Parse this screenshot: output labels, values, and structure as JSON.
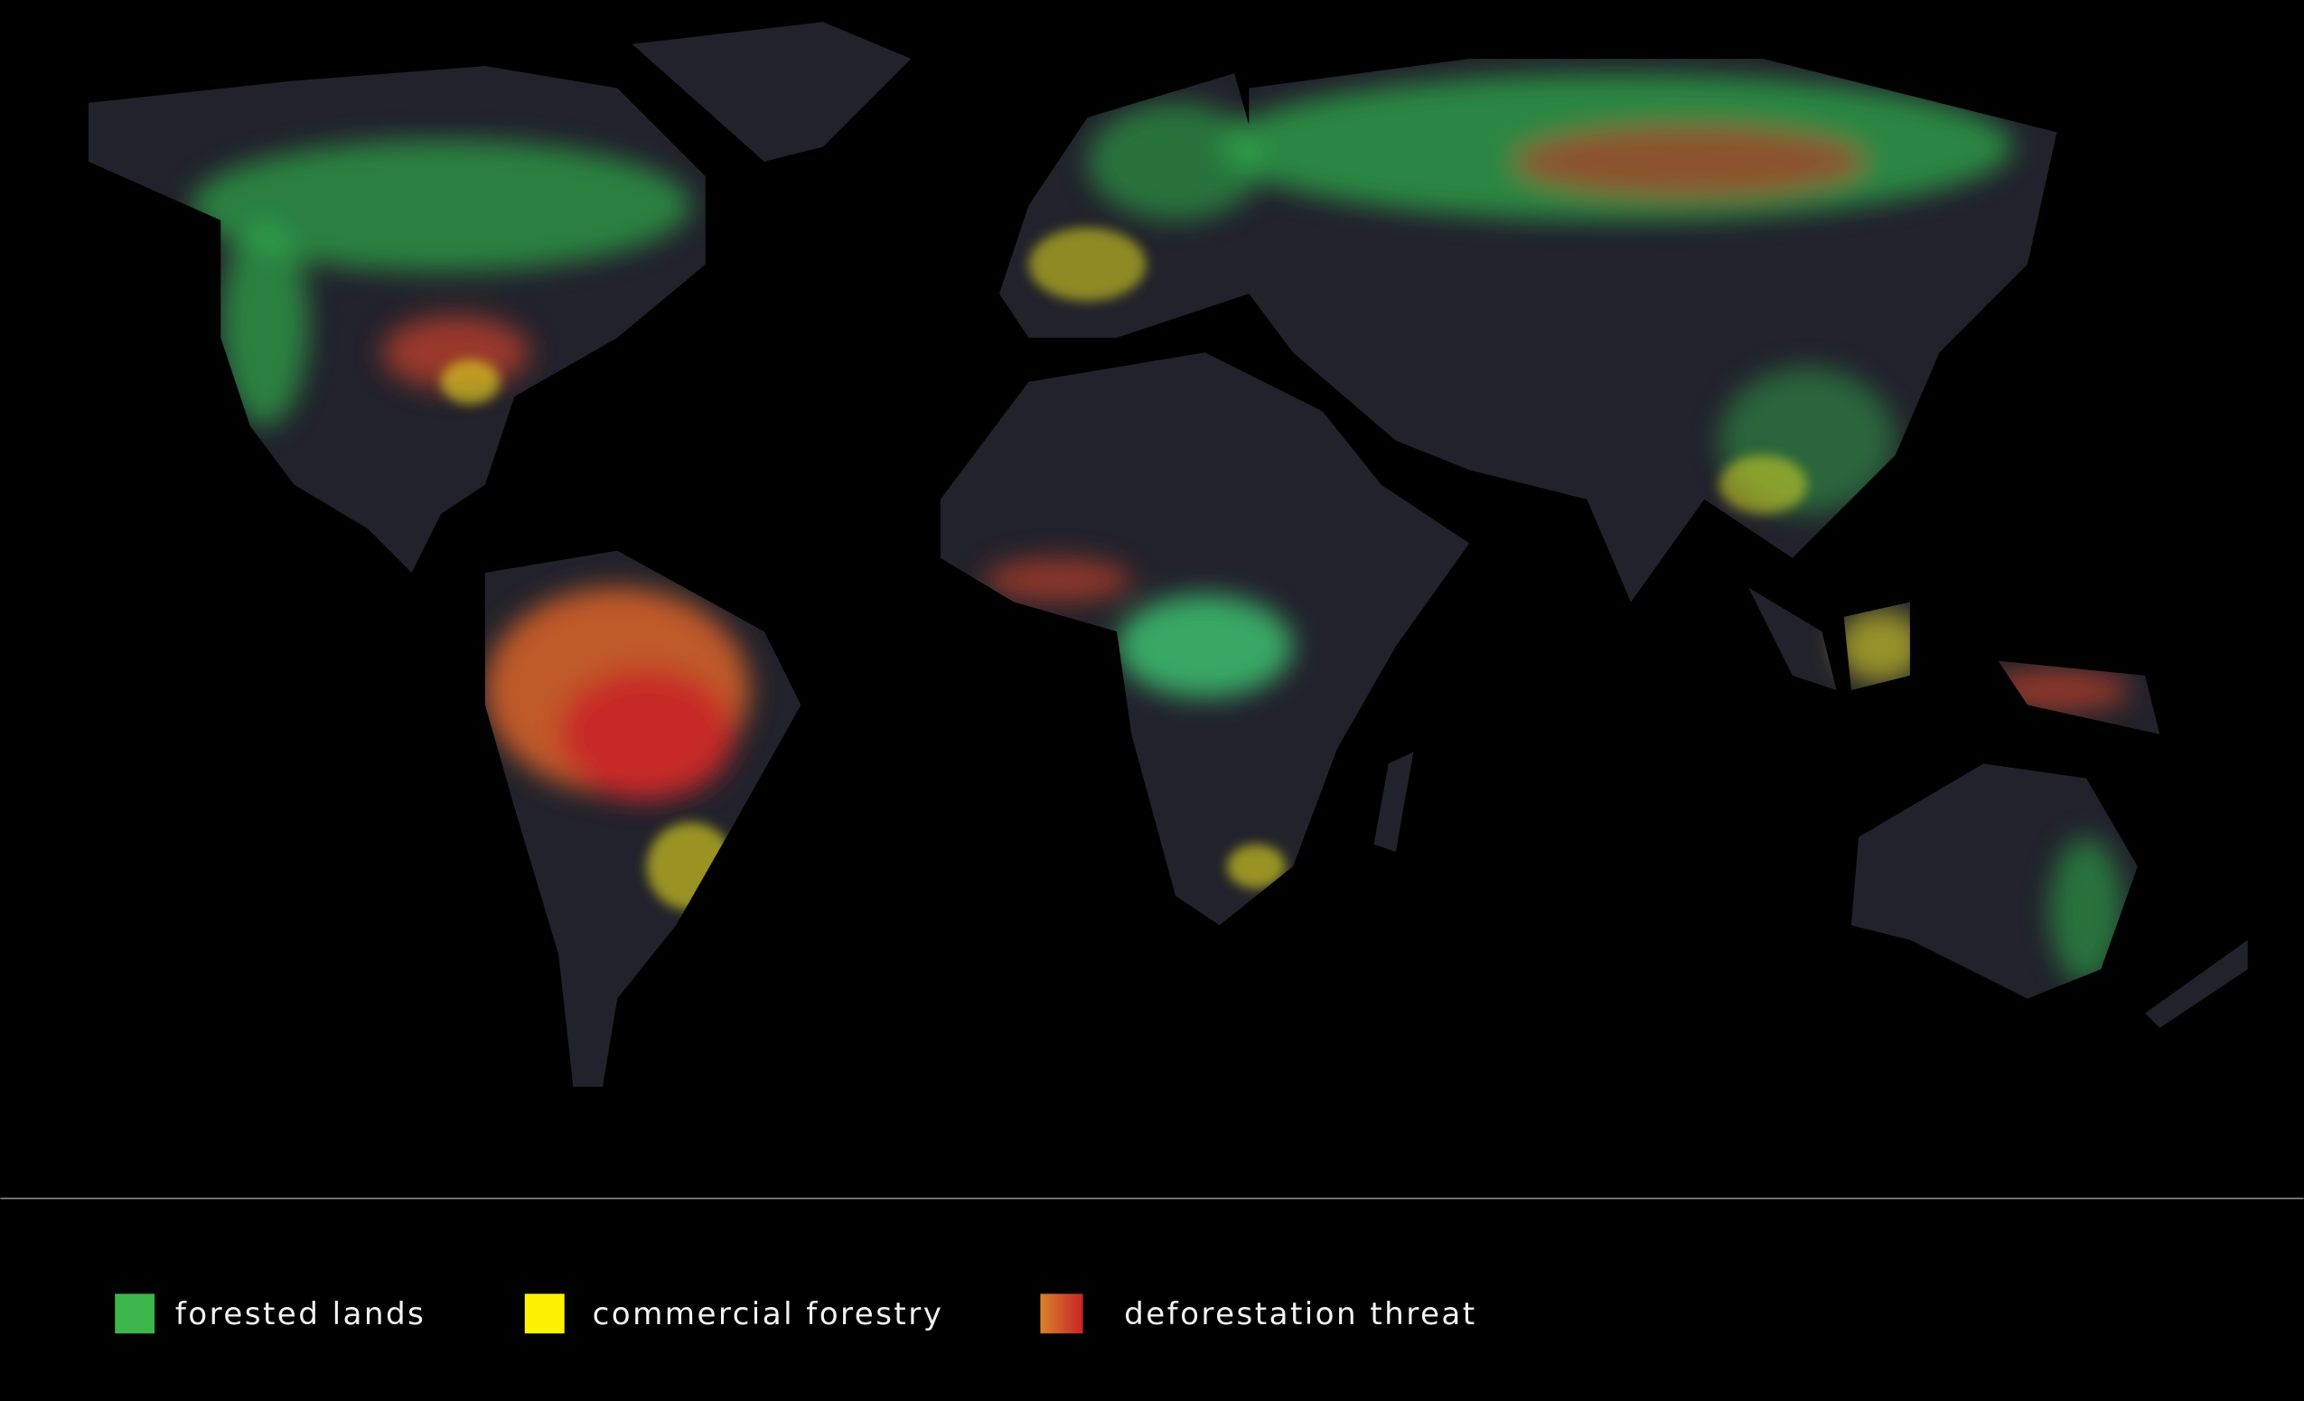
{
  "legend": [
    "forested lands",
    "commercial forestry",
    "deforestation threat"
  ]
}
